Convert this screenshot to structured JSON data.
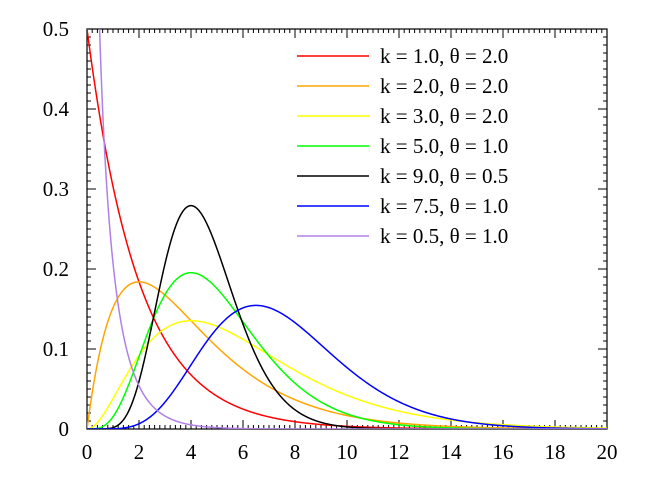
{
  "chart_data": {
    "type": "line",
    "title": "",
    "xlabel": "",
    "ylabel": "",
    "xlim": [
      0,
      20
    ],
    "ylim": [
      0,
      0.5
    ],
    "x_ticks": [
      0,
      2,
      4,
      6,
      8,
      10,
      12,
      14,
      16,
      18,
      20
    ],
    "x_tick_labels": [
      "0",
      "2",
      "4",
      "6",
      "8",
      "10",
      "12",
      "14",
      "16",
      "18",
      "20"
    ],
    "y_ticks": [
      0,
      0.1,
      0.2,
      0.3,
      0.4,
      0.5
    ],
    "y_tick_labels": [
      "0",
      "0.1",
      "0.2",
      "0.3",
      "0.4",
      "0.5"
    ],
    "grid": false,
    "legend_position": "top-right",
    "series": [
      {
        "name": "k = 1.0, θ = 2.0",
        "k": 1.0,
        "theta": 2.0,
        "color": "#ff0000"
      },
      {
        "name": "k = 2.0, θ = 2.0",
        "k": 2.0,
        "theta": 2.0,
        "color": "#ffa500"
      },
      {
        "name": "k = 3.0, θ = 2.0",
        "k": 3.0,
        "theta": 2.0,
        "color": "#ffff00"
      },
      {
        "name": "k = 5.0, θ = 1.0",
        "k": 5.0,
        "theta": 1.0,
        "color": "#00ff00"
      },
      {
        "name": "k = 9.0, θ = 0.5",
        "k": 9.0,
        "theta": 0.5,
        "color": "#000000"
      },
      {
        "name": "k = 7.5, θ = 1.0",
        "k": 7.5,
        "theta": 1.0,
        "color": "#0000ff"
      },
      {
        "name": "k = 0.5, θ = 1.0",
        "k": 0.5,
        "theta": 1.0,
        "color": "#b080e8"
      }
    ]
  }
}
